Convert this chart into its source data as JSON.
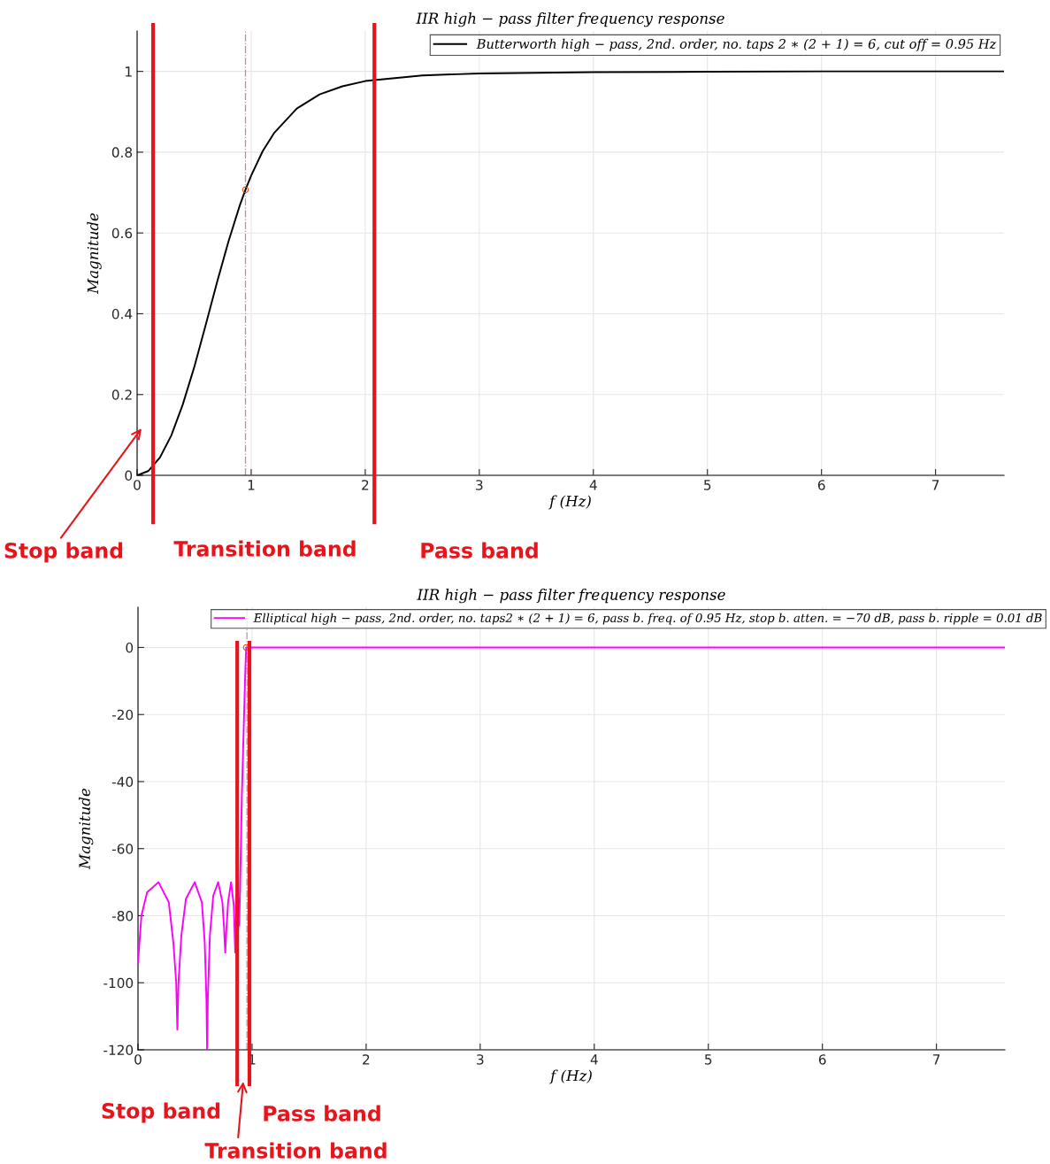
{
  "chart_data": [
    {
      "type": "line",
      "title": "IIR high − pass filter frequency response",
      "xlabel": "f (Hz)",
      "ylabel": "Magnitude",
      "xlim": [
        0,
        7.6
      ],
      "xticks": [
        0,
        1,
        2,
        3,
        4,
        5,
        6,
        7
      ],
      "ylim": [
        0,
        1.1
      ],
      "yticks": [
        0,
        0.2,
        0.4,
        0.6,
        0.8,
        1
      ],
      "grid": true,
      "legend": "top right",
      "series": [
        {
          "name": "Butterworth high − pass, 2nd. order, no. taps 2 ∗ (2 + 1) = 6, cut off = 0.95 Hz",
          "color": "#000000",
          "marker": "none",
          "x": [
            0,
            0.1,
            0.2,
            0.3,
            0.4,
            0.5,
            0.6,
            0.7,
            0.8,
            0.9,
            0.95,
            1.0,
            1.1,
            1.2,
            1.4,
            1.6,
            1.8,
            2.0,
            2.5,
            3,
            4,
            5,
            6,
            7,
            7.6
          ],
          "values": [
            0,
            0.011,
            0.044,
            0.099,
            0.175,
            0.267,
            0.371,
            0.477,
            0.578,
            0.668,
            0.707,
            0.742,
            0.802,
            0.847,
            0.908,
            0.943,
            0.963,
            0.976,
            0.99,
            0.995,
            0.998,
            0.999,
            1.0,
            1.0,
            1.0
          ]
        },
        {
          "type": "scatter",
          "color": "#d95319",
          "marker": "circle",
          "x": [
            0.95
          ],
          "values": [
            0.707
          ]
        }
      ],
      "ref_lines": [
        {
          "axis": "x",
          "value": 0.95,
          "color": "#d98080",
          "line_style": "dashed"
        },
        {
          "axis": "x",
          "value": 0.14,
          "color": "#e8141b",
          "line_style": "solid"
        },
        {
          "axis": "x",
          "value": 2.08,
          "color": "#e8141b",
          "line_style": "solid"
        }
      ],
      "annotations": [
        "Stop band",
        "Transition band",
        "Pass band"
      ]
    },
    {
      "type": "line",
      "title": "IIR high − pass filter frequency response",
      "xlabel": "f (Hz)",
      "ylabel": "Magnitude",
      "xlim": [
        0,
        7.6
      ],
      "xticks": [
        0,
        1,
        2,
        3,
        4,
        5,
        6,
        7
      ],
      "ylim": [
        -120,
        12
      ],
      "yticks": [
        -120,
        -100,
        -80,
        -60,
        -40,
        -20,
        0
      ],
      "grid": true,
      "legend": "top right",
      "series": [
        {
          "name": "Elliptical high − pass, 2nd. order, no. taps2 ∗ (2 + 1) = 6, pass b. freq. of 0.95 Hz, stop b. atten. = −70 dB, pass b. ripple = 0.01 dB",
          "color": "#ff00ff",
          "marker": "none",
          "x": [
            0,
            0.03,
            0.08,
            0.18,
            0.27,
            0.31,
            0.335,
            0.345,
            0.355,
            0.38,
            0.42,
            0.497,
            0.56,
            0.585,
            0.6,
            0.606,
            0.612,
            0.63,
            0.66,
            0.703,
            0.74,
            0.755,
            0.765,
            0.775,
            0.79,
            0.816,
            0.84,
            0.852,
            0.862,
            0.871,
            0.88,
            0.887,
            0.895,
            0.91,
            0.926,
            0.94,
            0.948,
            1.2,
            2,
            4,
            7.6
          ],
          "values": [
            -94,
            -80,
            -73,
            -70,
            -76,
            -88,
            -100,
            -114,
            -100,
            -86,
            -75,
            -70,
            -76,
            -88,
            -105,
            -120,
            -105,
            -86,
            -74,
            -70,
            -76,
            -84,
            -91,
            -84,
            -76,
            -70,
            -77,
            -91,
            -78,
            -72,
            -76,
            -83,
            -72,
            -45,
            -25,
            -8,
            0,
            0,
            0,
            0,
            0
          ]
        },
        {
          "type": "scatter",
          "color": "#d95319",
          "marker": "circle",
          "x": [
            0.95
          ],
          "values": [
            0
          ]
        }
      ],
      "ref_lines": [
        {
          "axis": "x",
          "value": 0.955,
          "color": "#a0a0a0",
          "line_style": "dashed"
        },
        {
          "axis": "x",
          "value": 0.87,
          "color": "#e8141b",
          "line_style": "solid"
        },
        {
          "axis": "x",
          "value": 0.977,
          "color": "#e8141b",
          "line_style": "solid"
        }
      ],
      "annotations": [
        "Stop band",
        "Pass band",
        "Transition band"
      ]
    }
  ]
}
